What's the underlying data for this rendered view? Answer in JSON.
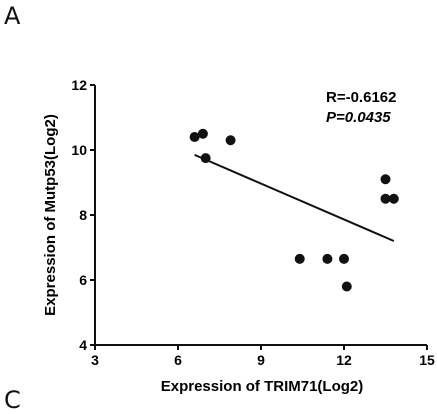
{
  "panel_label": "A",
  "next_panel_label": "C",
  "chart_data": {
    "type": "scatter",
    "xlabel": "Expression of TRIM71(Log2)",
    "ylabel": "Expression of Mutp53(Log2)",
    "xlim": [
      3,
      15
    ],
    "ylim": [
      4,
      12
    ],
    "xticks": [
      "3",
      "6",
      "9",
      "12",
      "15"
    ],
    "yticks": [
      "4",
      "6",
      "8",
      "10",
      "12"
    ],
    "x": [
      6.6,
      6.9,
      7.0,
      7.9,
      10.4,
      11.4,
      12.0,
      12.1,
      13.5,
      13.5,
      13.8
    ],
    "y": [
      10.4,
      10.5,
      9.75,
      10.3,
      6.65,
      6.65,
      6.65,
      5.8,
      9.1,
      8.5,
      8.5
    ],
    "trendline": {
      "x": [
        6.6,
        13.8
      ],
      "y": [
        9.85,
        7.2
      ]
    },
    "annotations": {
      "r": "R=-0.6162",
      "p": "P=0.0435"
    },
    "grid": false,
    "colors": {
      "points": "#111111",
      "line": "#111111"
    }
  }
}
